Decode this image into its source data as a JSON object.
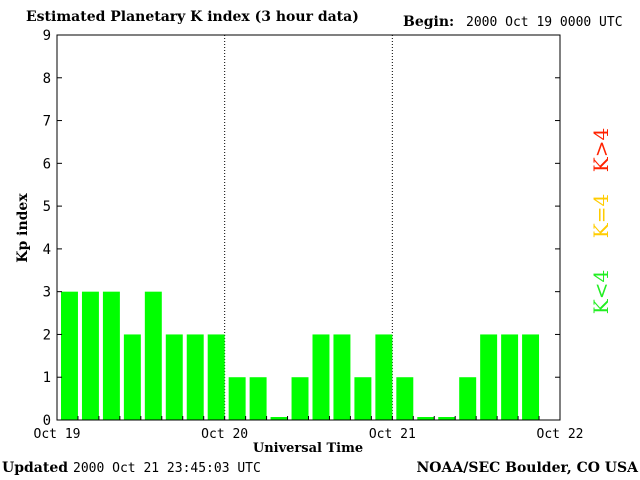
{
  "header": {
    "title": "Estimated Planetary K index (3 hour data)",
    "begin_label": "Begin:",
    "begin_value": "2000 Oct 19 0000 UTC"
  },
  "footer": {
    "updated_label": "Updated",
    "updated_value": "2000 Oct 21 23:45:03 UTC",
    "credit": "NOAA/SEC Boulder, CO USA"
  },
  "chart_data": {
    "type": "bar",
    "ylabel": "Kp index",
    "xlabel": "Universal Time",
    "ylim": [
      0,
      9
    ],
    "yticks": [
      "0",
      "1",
      "2",
      "3",
      "4",
      "5",
      "6",
      "7",
      "8",
      "9"
    ],
    "xticks": [
      "Oct 19",
      "Oct 20",
      "Oct 21",
      "Oct 22"
    ],
    "x_slots": 24,
    "day_dividers": [
      8,
      16
    ],
    "values": [
      3,
      3,
      3,
      2,
      3,
      2,
      2,
      2,
      1,
      1,
      0.07,
      1,
      2,
      2,
      1,
      2,
      1,
      0.07,
      0.07,
      1,
      2,
      2,
      2
    ],
    "legend": [
      {
        "label": "K<4",
        "color": "#22ee22"
      },
      {
        "label": "K=4",
        "color": "#ffcc00"
      },
      {
        "label": "K>4",
        "color": "#ff2200"
      }
    ],
    "bar_color": "#00ff00"
  }
}
